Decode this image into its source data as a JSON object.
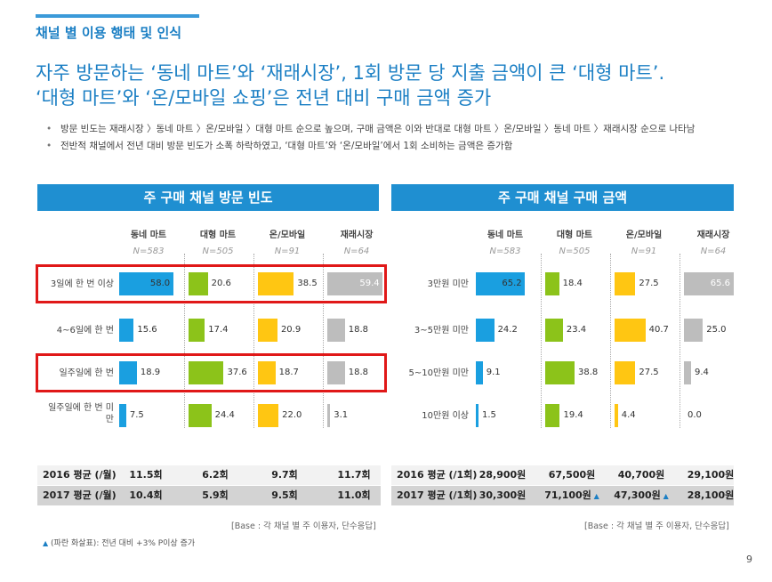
{
  "section_label": "채널 별 이용 행태 및 인식",
  "headline": [
    "자주 방문하는 ‘동네 마트’와 ‘재래시장’, 1회 방문 당 지출 금액이 큰 ‘대형 마트’.",
    "‘대형 마트’와 ‘온/모바일 쇼핑’은 전년 대비 구매 금액 증가"
  ],
  "bullets": [
    "방문 빈도는 재래시장 〉동네 마트 〉온/모바일 〉대형 마트 순으로 높으며, 구매 금액은 이와 반대로 대형 마트 〉온/모바일 〉동네 마트 〉재래시장 순으로 나타남",
    "전반적 채널에서 전년 대비 방문 빈도가 소폭 하락하였고, ‘대형 마트’와 ‘온/모바일’에서 1회 소비하는 금액은 증가함"
  ],
  "colors": {
    "dongne": "#1a9fe0",
    "daehyung": "#8cc31a",
    "online": "#ffc612",
    "market": "#bdbdbd",
    "red": "#e01818",
    "accent": "#1f8fd1"
  },
  "chart_data": [
    {
      "type": "bar",
      "title": "주 구매 채널 방문 빈도",
      "channels": [
        "동네 마트",
        "대형 마트",
        "온/모바일",
        "재래시장"
      ],
      "n": [
        "N=583",
        "N=505",
        "N=91",
        "N=64"
      ],
      "categories": [
        "3일에 한 번 이상",
        "4~6일에 한 번",
        "일주일에 한 번",
        "일주일에 한 번 미만"
      ],
      "series": [
        {
          "name": "동네 마트",
          "values": [
            58.0,
            15.6,
            18.9,
            7.5
          ]
        },
        {
          "name": "대형 마트",
          "values": [
            20.6,
            17.4,
            37.6,
            24.4
          ]
        },
        {
          "name": "온/모바일",
          "values": [
            38.5,
            20.9,
            18.7,
            22.0
          ]
        },
        {
          "name": "재래시장",
          "values": [
            59.4,
            18.8,
            18.8,
            3.1
          ]
        }
      ],
      "highlighted_rows": [
        0,
        2
      ],
      "summary": [
        {
          "label": "2016 평균 (/월)",
          "values": [
            "11.5회",
            "6.2회",
            "9.7회",
            "11.7회"
          ],
          "up": [
            false,
            false,
            false,
            false
          ]
        },
        {
          "label": "2017 평균 (/월)",
          "values": [
            "10.4회",
            "5.9회",
            "9.5회",
            "11.0회"
          ],
          "up": [
            false,
            false,
            false,
            false
          ]
        }
      ],
      "base": "[Base : 각 채널 별 주 이용자, 단수응답]"
    },
    {
      "type": "bar",
      "title": "주 구매 채널 구매 금액",
      "channels": [
        "동네 마트",
        "대형 마트",
        "온/모바일",
        "재래시장"
      ],
      "n": [
        "N=583",
        "N=505",
        "N=91",
        "N=64"
      ],
      "categories": [
        "3만원 미만",
        "3~5만원 미만",
        "5~10만원 미만",
        "10만원 이상"
      ],
      "series": [
        {
          "name": "동네 마트",
          "values": [
            65.2,
            24.2,
            9.1,
            1.5
          ]
        },
        {
          "name": "대형 마트",
          "values": [
            18.4,
            23.4,
            38.8,
            19.4
          ]
        },
        {
          "name": "온/모바일",
          "values": [
            27.5,
            40.7,
            27.5,
            4.4
          ]
        },
        {
          "name": "재래시장",
          "values": [
            65.6,
            25.0,
            9.4,
            0.0
          ]
        }
      ],
      "highlighted_rows": [],
      "summary": [
        {
          "label": "2016 평균 (/1회)",
          "values": [
            "28,900원",
            "67,500원",
            "40,700원",
            "29,100원"
          ],
          "up": [
            false,
            false,
            false,
            false
          ]
        },
        {
          "label": "2017 평균 (/1회)",
          "values": [
            "30,300원",
            "71,100원",
            "47,300원",
            "28,100원"
          ],
          "up": [
            false,
            true,
            true,
            false
          ]
        }
      ],
      "base": "[Base : 각 채널 별 주 이용자, 단수응답]"
    }
  ],
  "note": "(파란 화살표): 전년 대비 +3% P이상 증가",
  "page_number": "9"
}
